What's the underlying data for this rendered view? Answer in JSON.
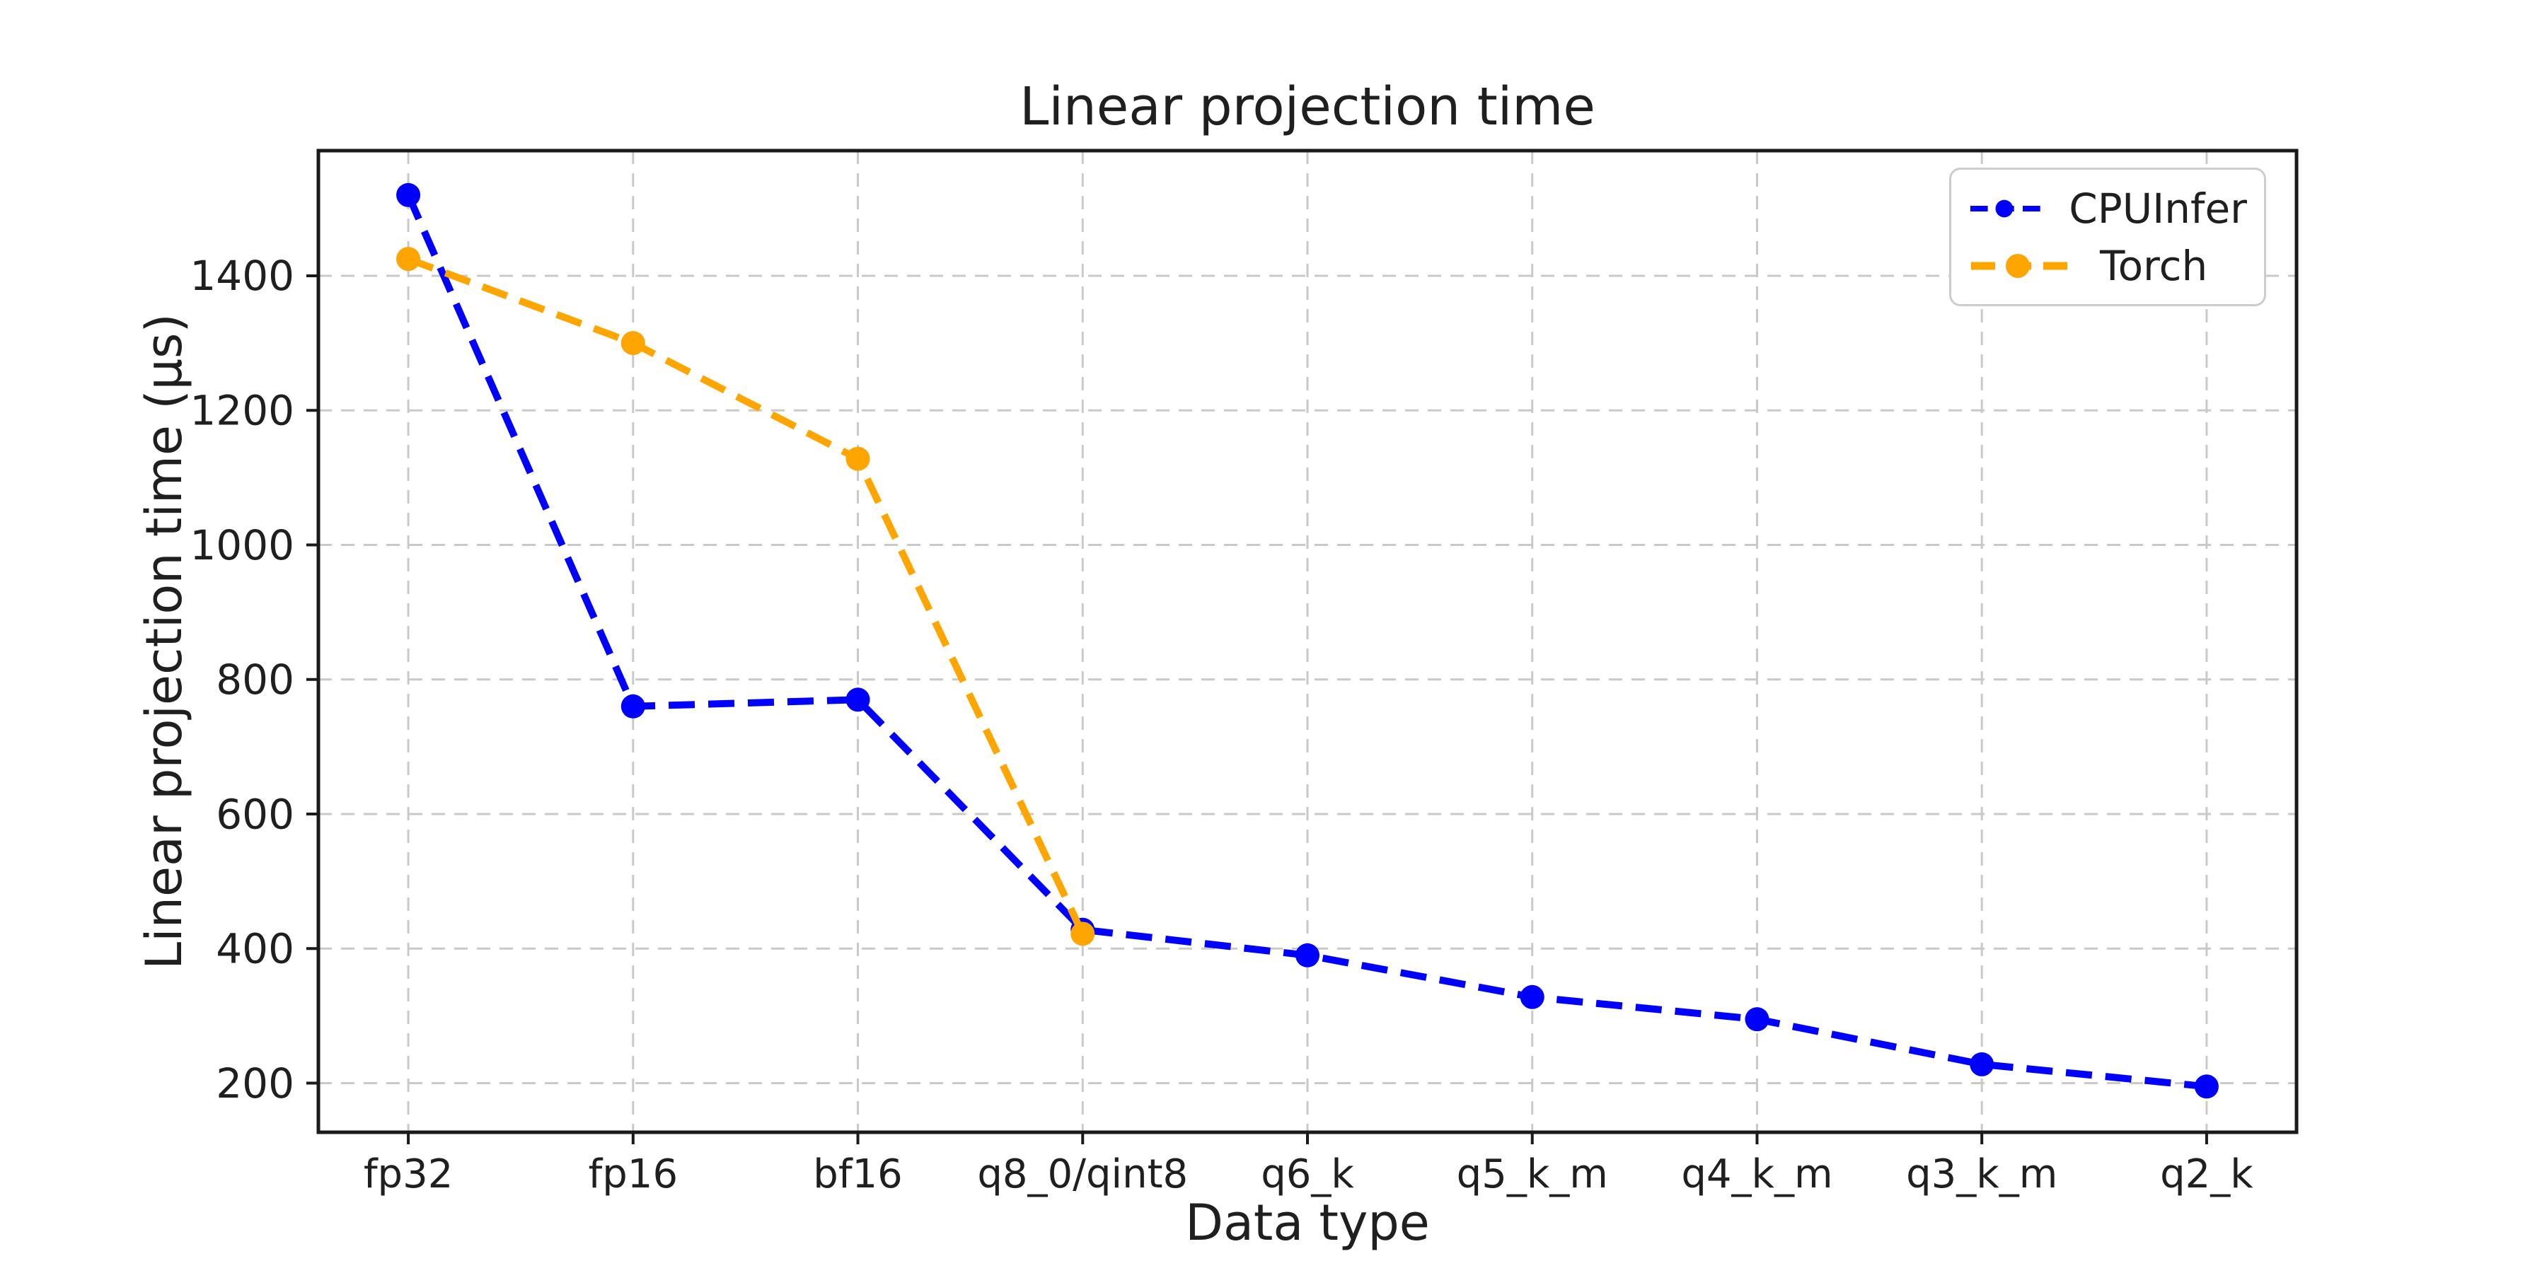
{
  "figure": {
    "title": "Linear projection time",
    "xlabel": "Data type",
    "ylabel": "Linear projection time (μs)"
  },
  "legend": {
    "position": "upper right",
    "entries": [
      {
        "label": "CPUInfer"
      },
      {
        "label": "Torch"
      }
    ]
  },
  "chart_data": {
    "type": "line",
    "title": "Linear projection time",
    "xlabel": "Data type",
    "ylabel": "Linear projection time (μs)",
    "categories": [
      "fp32",
      "fp16",
      "bf16",
      "q8_0/qint8",
      "q6_k",
      "q5_k_m",
      "q4_k_m",
      "q3_k_m",
      "q2_k"
    ],
    "series": [
      {
        "name": "CPUInfer",
        "color": "#0000ff",
        "line_style": "dashed",
        "marker": "circle",
        "values": [
          1520,
          760,
          770,
          428,
          390,
          328,
          295,
          228,
          195
        ]
      },
      {
        "name": "Torch",
        "color": "#ffa500",
        "line_style": "dashed",
        "marker": "circle",
        "values": [
          1425,
          1300,
          1128,
          422,
          null,
          null,
          null,
          null,
          null
        ]
      }
    ],
    "yticks": [
      200,
      400,
      600,
      800,
      1000,
      1200,
      1400
    ],
    "ylim": [
      127,
      1586
    ],
    "grid": true,
    "grid_style": "dashed",
    "legend_position": "upper right",
    "axis_color": "#1a1a1a",
    "grid_color": "#c9c9c9",
    "tick_label_color": "#1f1f1f"
  }
}
